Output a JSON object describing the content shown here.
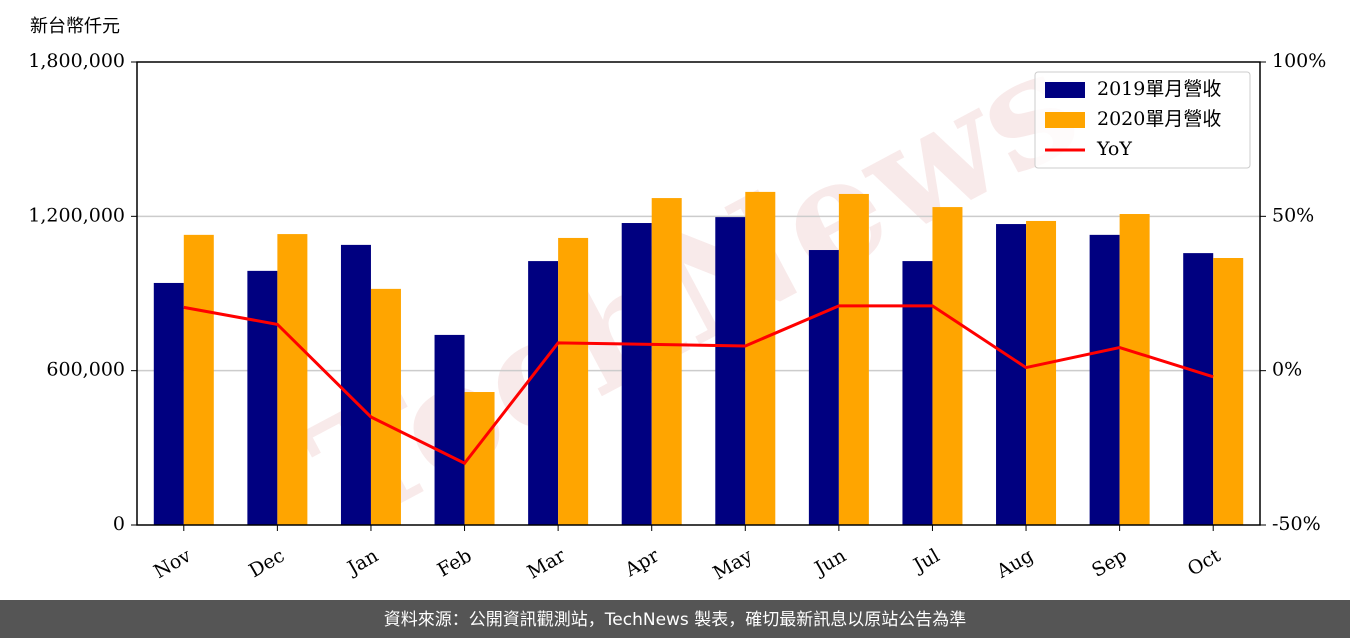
{
  "chart_data": {
    "type": "bar_line",
    "y_label": "新台幣仟元",
    "watermark": "TechNews",
    "footer": "資料來源：公開資訊觀測站，TechNews 製表，確切最新訊息以原站公告為準",
    "categories": [
      "Nov",
      "Dec",
      "Jan",
      "Feb",
      "Mar",
      "Apr",
      "May",
      "Jun",
      "Jul",
      "Aug",
      "Sep",
      "Oct"
    ],
    "series": [
      {
        "name": "2019單月營收",
        "type": "bar",
        "color": "#000080",
        "values": [
          941000,
          988000,
          1089000,
          739000,
          1026000,
          1174000,
          1197000,
          1069000,
          1026000,
          1170000,
          1128000,
          1057000
        ]
      },
      {
        "name": "2020單月營收",
        "type": "bar",
        "color": "#ffa500",
        "values": [
          1128000,
          1131000,
          918000,
          517000,
          1116000,
          1271000,
          1295000,
          1287000,
          1236000,
          1182000,
          1209000,
          1038000
        ]
      },
      {
        "name": "YoY",
        "type": "line",
        "axis": "y2",
        "color": "#ff0000",
        "values": [
          20.5,
          15,
          -15,
          -30,
          9,
          8.5,
          8,
          21,
          21,
          1,
          7.5,
          -2
        ]
      }
    ],
    "ylim": [
      0,
      1800000
    ],
    "yticks": [
      0,
      {
        "value": 600000,
        "label": "600,000"
      },
      {
        "value": 1200000,
        "label": "1,200,000"
      },
      {
        "value": 1800000,
        "label": "1,800,000"
      }
    ],
    "y2lim": [
      -50,
      100
    ],
    "y2ticks": [
      {
        "value": -50,
        "label": "-50%"
      },
      {
        "value": 0,
        "label": "0%"
      },
      {
        "value": 50,
        "label": "50%"
      },
      {
        "value": 100,
        "label": "100%"
      }
    ],
    "grid": true,
    "legend": "upper right"
  }
}
